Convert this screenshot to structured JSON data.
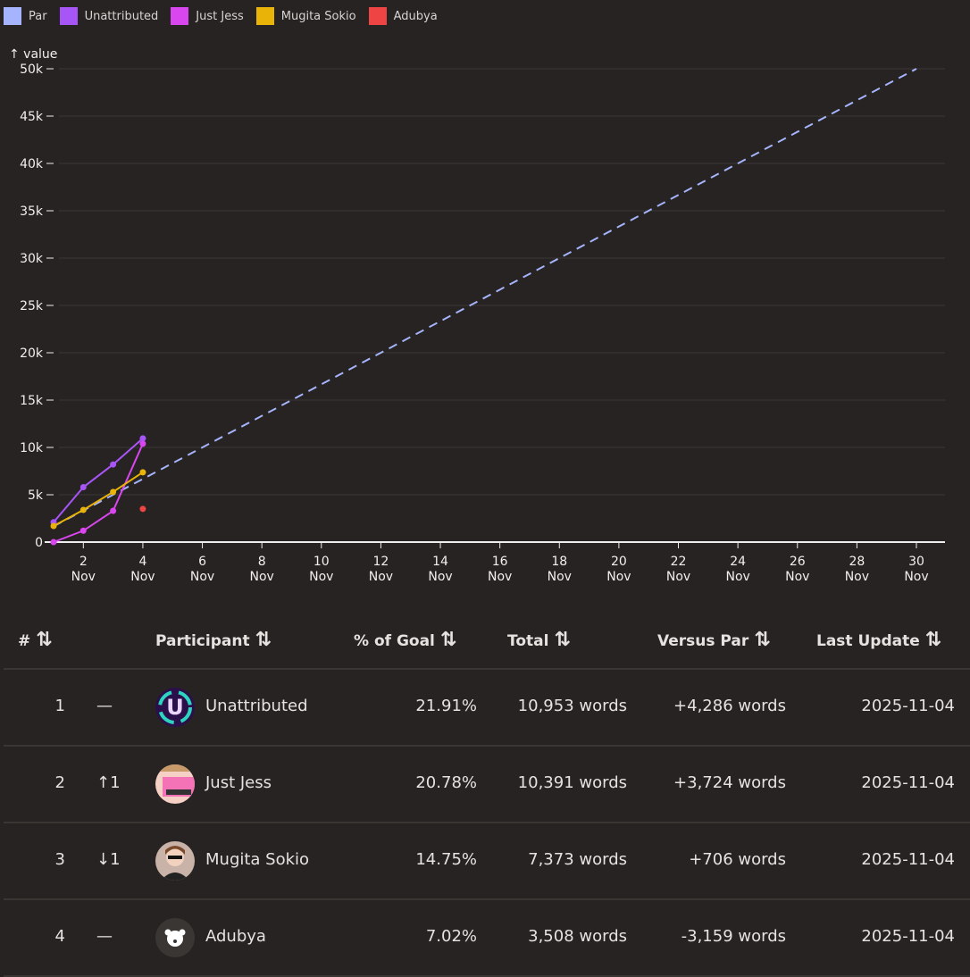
{
  "legend": [
    {
      "name": "Par",
      "color": "#a5b4fc"
    },
    {
      "name": "Unattributed",
      "color": "#a855f7"
    },
    {
      "name": "Just Jess",
      "color": "#d946ef"
    },
    {
      "name": "Mugita Sokio",
      "color": "#eab308"
    },
    {
      "name": "Adubya",
      "color": "#ef4444"
    }
  ],
  "chart_data": {
    "type": "line",
    "ylabel": "↑ value",
    "xlim": [
      1,
      31
    ],
    "ylim": [
      0,
      50000
    ],
    "yticks": [
      0,
      5000,
      10000,
      15000,
      20000,
      25000,
      30000,
      35000,
      40000,
      45000,
      50000
    ],
    "ytick_labels": [
      "0",
      "5k",
      "10k",
      "15k",
      "20k",
      "25k",
      "30k",
      "35k",
      "40k",
      "45k",
      "50k"
    ],
    "xticks": [
      2,
      4,
      6,
      8,
      10,
      12,
      14,
      16,
      18,
      20,
      22,
      24,
      26,
      28,
      30
    ],
    "xtick_month": "Nov",
    "grid": "horizontal",
    "legend_placement": "top-left",
    "series": [
      {
        "name": "Par",
        "color": "#a5b4fc",
        "dashed": true,
        "x": [
          1,
          30
        ],
        "y": [
          1667,
          50000
        ]
      },
      {
        "name": "Unattributed",
        "color": "#a855f7",
        "x": [
          1,
          2,
          3,
          4
        ],
        "y": [
          2100,
          5800,
          8200,
          10953
        ]
      },
      {
        "name": "Just Jess",
        "color": "#d946ef",
        "x": [
          1,
          2,
          3,
          4
        ],
        "y": [
          0,
          1200,
          3300,
          10391
        ]
      },
      {
        "name": "Mugita Sokio",
        "color": "#eab308",
        "x": [
          1,
          2,
          3,
          4
        ],
        "y": [
          1700,
          3400,
          5300,
          7373
        ]
      },
      {
        "name": "Adubya",
        "color": "#ef4444",
        "x": [
          4
        ],
        "y": [
          3508
        ]
      }
    ]
  },
  "table": {
    "headers": {
      "rank": "#",
      "participant": "Participant",
      "pct": "% of Goal",
      "total": "Total",
      "vspar": "Versus Par",
      "updated": "Last Update",
      "sort_icon": "⇅"
    },
    "rows": [
      {
        "rank": "1",
        "change": "—",
        "name": "Unattributed",
        "pct": "21.91%",
        "total": "10,953 words",
        "vspar": "+4,286 words",
        "updated": "2025-11-04",
        "avatar": "u-logo"
      },
      {
        "rank": "2",
        "change": "↑1",
        "name": "Just Jess",
        "pct": "20.78%",
        "total": "10,391 words",
        "vspar": "+3,724 words",
        "updated": "2025-11-04",
        "avatar": "typewriter"
      },
      {
        "rank": "3",
        "change": "↓1",
        "name": "Mugita Sokio",
        "pct": "14.75%",
        "total": "7,373 words",
        "vspar": "+706 words",
        "updated": "2025-11-04",
        "avatar": "portrait"
      },
      {
        "rank": "4",
        "change": "—",
        "name": "Adubya",
        "pct": "7.02%",
        "total": "3,508 words",
        "vspar": "-3,159 words",
        "updated": "2025-11-04",
        "avatar": "bear"
      }
    ]
  }
}
